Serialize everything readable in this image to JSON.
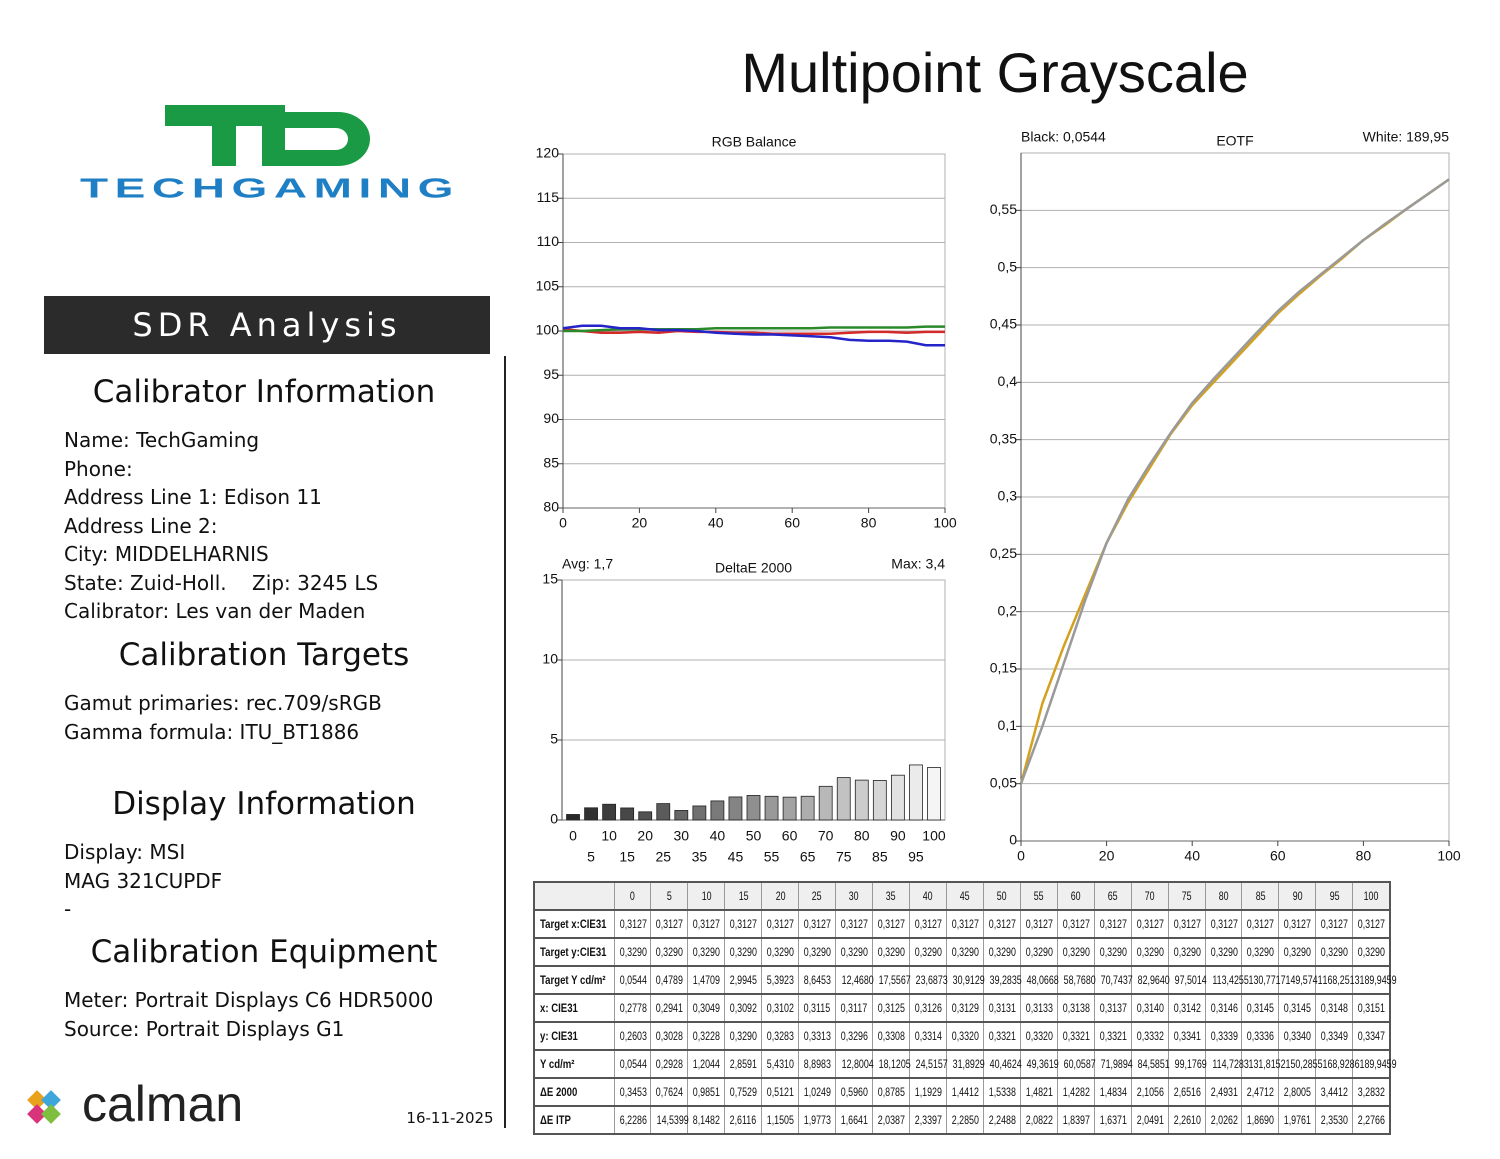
{
  "header": {
    "title": "Multipoint Grayscale"
  },
  "logo": {
    "brand": "TECHGAMING"
  },
  "banner": "SDR Analysis",
  "sections": [
    {
      "heading": "Calibrator Information",
      "lines": [
        "Name: TechGaming",
        "Phone:",
        "Address Line 1: Edison 11",
        "Address Line 2:",
        "City: MIDDELHARNIS",
        "State: Zuid-Holl.    Zip: 3245 LS",
        "Calibrator: Les van der Maden"
      ]
    },
    {
      "heading": "Calibration Targets",
      "lines": [
        "Gamut primaries: rec.709/sRGB",
        "Gamma formula: ITU_BT1886"
      ]
    },
    {
      "heading": "Display Information",
      "lines": [
        "Display: MSI",
        "MAG 321CUPDF",
        "-"
      ]
    },
    {
      "heading": "Calibration Equipment",
      "lines": [
        "Meter: Portrait Displays C6 HDR5000",
        "Source: Portrait Displays G1"
      ]
    }
  ],
  "footer": {
    "software": "calman",
    "date": "16-11-2025"
  },
  "chart_data": [
    {
      "type": "line",
      "title": "RGB Balance",
      "x": [
        0,
        5,
        10,
        15,
        20,
        25,
        30,
        35,
        40,
        45,
        50,
        55,
        60,
        65,
        70,
        75,
        80,
        85,
        90,
        95,
        100
      ],
      "series": [
        {
          "color": "#d42a2a",
          "values": [
            100.2,
            100.0,
            99.8,
            99.8,
            99.9,
            99.8,
            100.0,
            99.9,
            99.9,
            99.8,
            99.8,
            99.7,
            99.7,
            99.7,
            99.7,
            99.8,
            99.9,
            99.9,
            99.8,
            99.9,
            99.9
          ]
        },
        {
          "color": "#2a8a2a",
          "values": [
            100.0,
            100.0,
            100.1,
            100.2,
            100.2,
            100.2,
            100.2,
            100.2,
            100.3,
            100.3,
            100.3,
            100.3,
            100.3,
            100.3,
            100.4,
            100.4,
            100.4,
            100.4,
            100.4,
            100.5,
            100.5
          ]
        },
        {
          "color": "#2424c8",
          "values": [
            100.3,
            100.6,
            100.6,
            100.3,
            100.3,
            100.1,
            100.1,
            100.0,
            99.8,
            99.7,
            99.6,
            99.6,
            99.5,
            99.4,
            99.3,
            99.0,
            98.9,
            98.9,
            98.8,
            98.4,
            98.4
          ]
        }
      ],
      "xlim": [
        0,
        100
      ],
      "xticks": [
        0,
        20,
        40,
        60,
        80,
        100
      ],
      "ylim": [
        80,
        120
      ],
      "yticks": [
        80,
        85,
        90,
        95,
        100,
        105,
        110,
        115,
        120
      ],
      "grid": true
    },
    {
      "type": "bar",
      "title": "DeltaE 2000",
      "annotations": [
        "Avg: 1,7",
        "Max: 3,4"
      ],
      "categories": [
        "0",
        "5",
        "10",
        "15",
        "20",
        "25",
        "30",
        "35",
        "40",
        "45",
        "50",
        "55",
        "60",
        "65",
        "70",
        "75",
        "80",
        "85",
        "90",
        "95",
        "100"
      ],
      "values": [
        0.3453,
        0.7624,
        0.9851,
        0.7529,
        0.5121,
        1.0249,
        0.596,
        0.8785,
        1.1929,
        1.4412,
        1.5338,
        1.4821,
        1.4282,
        1.4834,
        2.1056,
        2.6516,
        2.4931,
        2.4712,
        2.8005,
        3.4412,
        3.2832
      ],
      "ylim": [
        0,
        15
      ],
      "yticks": [
        0,
        5,
        10,
        15
      ],
      "grid": true
    },
    {
      "type": "line",
      "title": "EOTF",
      "annotations": [
        "Black: 0,0544",
        "White: 189,95"
      ],
      "x": [
        0,
        5,
        10,
        15,
        20,
        25,
        30,
        35,
        40,
        45,
        50,
        55,
        60,
        65,
        70,
        75,
        80,
        85,
        90,
        95,
        100
      ],
      "series": [
        {
          "color": "#d4a020",
          "values": [
            0.05,
            0.12,
            0.17,
            0.215,
            0.26,
            0.295,
            0.325,
            0.355,
            0.38,
            0.4,
            0.42,
            0.44,
            0.46,
            0.477,
            0.493,
            0.508,
            0.524,
            0.537,
            0.551,
            0.564,
            0.577
          ]
        },
        {
          "color": "#9a9a9a",
          "values": [
            0.05,
            0.1,
            0.155,
            0.21,
            0.26,
            0.298,
            0.328,
            0.356,
            0.382,
            0.403,
            0.423,
            0.443,
            0.462,
            0.479,
            0.494,
            0.509,
            0.524,
            0.538,
            0.551,
            0.564,
            0.577
          ]
        }
      ],
      "xlim": [
        0,
        100
      ],
      "xticks": [
        0,
        20,
        40,
        60,
        80,
        100
      ],
      "ylim": [
        0,
        0.6
      ],
      "yticks": [
        0,
        {
          "value": 0.05,
          "label": "0,05"
        },
        {
          "value": 0.1,
          "label": "0,1"
        },
        {
          "value": 0.15,
          "label": "0,15"
        },
        {
          "value": 0.2,
          "label": "0,2"
        },
        {
          "value": 0.25,
          "label": "0,25"
        },
        {
          "value": 0.3,
          "label": "0,3"
        },
        {
          "value": 0.35,
          "label": "0,35"
        },
        {
          "value": 0.4,
          "label": "0,4"
        },
        {
          "value": 0.45,
          "label": "0,45"
        },
        {
          "value": 0.5,
          "label": "0,5"
        },
        {
          "value": 0.55,
          "label": "0,55"
        }
      ],
      "grid": true
    }
  ],
  "table": {
    "columns": [
      "0",
      "5",
      "10",
      "15",
      "20",
      "25",
      "30",
      "35",
      "40",
      "45",
      "50",
      "55",
      "60",
      "65",
      "70",
      "75",
      "80",
      "85",
      "90",
      "95",
      "100"
    ],
    "rows": [
      [
        "Target x:CIE31",
        "0,3127",
        "0,3127",
        "0,3127",
        "0,3127",
        "0,3127",
        "0,3127",
        "0,3127",
        "0,3127",
        "0,3127",
        "0,3127",
        "0,3127",
        "0,3127",
        "0,3127",
        "0,3127",
        "0,3127",
        "0,3127",
        "0,3127",
        "0,3127",
        "0,3127",
        "0,3127",
        "0,3127"
      ],
      [
        "Target y:CIE31",
        "0,3290",
        "0,3290",
        "0,3290",
        "0,3290",
        "0,3290",
        "0,3290",
        "0,3290",
        "0,3290",
        "0,3290",
        "0,3290",
        "0,3290",
        "0,3290",
        "0,3290",
        "0,3290",
        "0,3290",
        "0,3290",
        "0,3290",
        "0,3290",
        "0,3290",
        "0,3290",
        "0,3290"
      ],
      [
        "Target Y cd/m²",
        "0,0544",
        "0,4789",
        "1,4709",
        "2,9945",
        "5,3923",
        "8,6453",
        "12,4680",
        "17,5567",
        "23,6873",
        "30,9129",
        "39,2835",
        "48,0668",
        "58,7680",
        "70,7437",
        "82,9640",
        "97,5014",
        "113,4255",
        "130,7717",
        "149,5741",
        "168,2513",
        "189,9459"
      ],
      [
        "x: CIE31",
        "0,2778",
        "0,2941",
        "0,3049",
        "0,3092",
        "0,3102",
        "0,3115",
        "0,3117",
        "0,3125",
        "0,3126",
        "0,3129",
        "0,3131",
        "0,3133",
        "0,3138",
        "0,3137",
        "0,3140",
        "0,3142",
        "0,3146",
        "0,3145",
        "0,3145",
        "0,3148",
        "0,3151"
      ],
      [
        "y: CIE31",
        "0,2603",
        "0,3028",
        "0,3228",
        "0,3290",
        "0,3283",
        "0,3313",
        "0,3296",
        "0,3308",
        "0,3314",
        "0,3320",
        "0,3321",
        "0,3320",
        "0,3321",
        "0,3321",
        "0,3332",
        "0,3341",
        "0,3339",
        "0,3336",
        "0,3340",
        "0,3349",
        "0,3347"
      ],
      [
        "Y cd/m²",
        "0,0544",
        "0,2928",
        "1,2044",
        "2,8591",
        "5,4310",
        "8,8983",
        "12,8004",
        "18,1205",
        "24,5157",
        "31,8929",
        "40,4624",
        "49,3619",
        "60,0587",
        "71,9894",
        "84,5851",
        "99,1769",
        "114,7283",
        "131,8152",
        "150,2855",
        "168,9286",
        "189,9459"
      ],
      [
        "ΔE 2000",
        "0,3453",
        "0,7624",
        "0,9851",
        "0,7529",
        "0,5121",
        "1,0249",
        "0,5960",
        "0,8785",
        "1,1929",
        "1,4412",
        "1,5338",
        "1,4821",
        "1,4282",
        "1,4834",
        "2,1056",
        "2,6516",
        "2,4931",
        "2,4712",
        "2,8005",
        "3,4412",
        "3,2832"
      ],
      [
        "ΔE ITP",
        "6,2286",
        "14,5399",
        "8,1482",
        "2,6116",
        "1,1505",
        "1,9773",
        "1,6641",
        "2,0387",
        "2,3397",
        "2,2850",
        "2,2488",
        "2,0822",
        "1,8397",
        "1,6371",
        "2,0491",
        "2,2610",
        "2,0262",
        "1,8690",
        "1,9761",
        "2,3530",
        "2,2766"
      ]
    ]
  }
}
